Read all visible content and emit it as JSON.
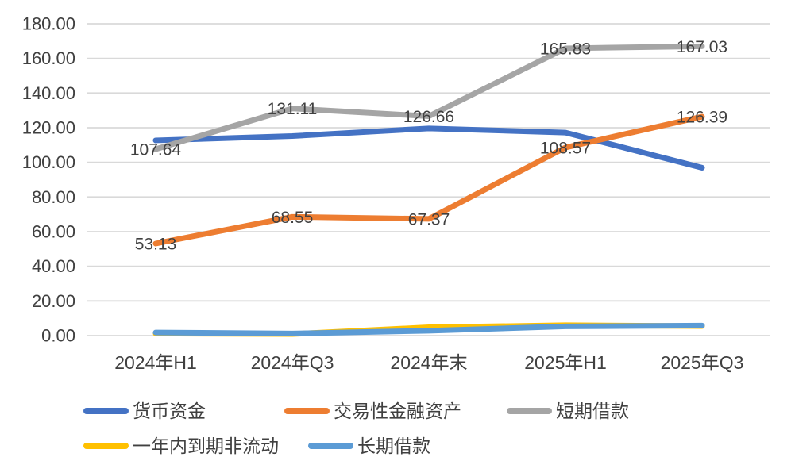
{
  "chart_data": {
    "type": "line",
    "title": "",
    "xlabel": "",
    "ylabel": "",
    "categories": [
      "2024年H1",
      "2024年Q3",
      "2024年末",
      "2025年H1",
      "2025年Q3"
    ],
    "series": [
      {
        "name": "货币资金",
        "color": "#4472C4",
        "show_labels": false,
        "values": [
          112.7,
          115.2,
          119.6,
          117.2,
          96.9
        ]
      },
      {
        "name": "交易性金融资产",
        "color": "#ED7D31",
        "show_labels": true,
        "values": [
          53.13,
          68.55,
          67.37,
          108.57,
          126.39
        ]
      },
      {
        "name": "短期借款",
        "color": "#A5A5A5",
        "show_labels": true,
        "values": [
          107.64,
          131.11,
          126.66,
          165.83,
          167.03
        ]
      },
      {
        "name": "一年内到期非流动",
        "color": "#FFC000",
        "show_labels": false,
        "values": [
          1.2,
          0.9,
          4.8,
          6.0,
          5.5
        ]
      },
      {
        "name": "长期借款",
        "color": "#5B9BD5",
        "show_labels": false,
        "values": [
          1.8,
          1.2,
          2.8,
          5.3,
          5.8
        ]
      }
    ],
    "y_axis": {
      "min": 0,
      "max": 180,
      "step": 20,
      "tick_labels": [
        "0.00",
        "20.00",
        "40.00",
        "60.00",
        "80.00",
        "100.00",
        "120.00",
        "140.00",
        "160.00",
        "180.00"
      ]
    },
    "grid": true,
    "legend_position": "bottom",
    "styles": {
      "gridline_color": "#D9D9D9",
      "text_color": "#404040",
      "background": "#FFFFFF"
    }
  }
}
